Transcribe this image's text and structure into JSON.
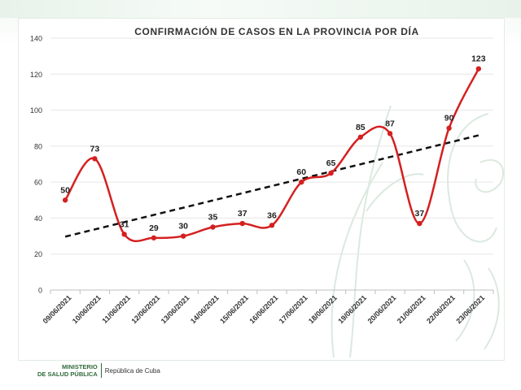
{
  "chart_data": {
    "type": "line",
    "title": "CONFIRMACIÓN  DE CASOS EN LA PROVINCIA POR DÍA",
    "xlabel": "",
    "ylabel": "",
    "ylim": [
      0,
      140
    ],
    "yticks": [
      0,
      20,
      40,
      60,
      80,
      100,
      120,
      140
    ],
    "grid": true,
    "categories": [
      "09/06/2021",
      "10/06/2021",
      "11/06/2021",
      "12/06/2021",
      "13/06/2021",
      "14/06/2021",
      "15/06/2021",
      "16/06/2021",
      "17/06/2021",
      "18/06/2021",
      "19/06/2021",
      "20/06/2021",
      "21/06/2021",
      "22/06/2021",
      "23/06/2021"
    ],
    "series": [
      {
        "name": "",
        "color": "#d42020",
        "values": [
          50,
          73,
          31,
          29,
          30,
          35,
          37,
          36,
          60,
          65,
          85,
          87,
          37,
          90,
          123
        ],
        "labels": [
          "50",
          "73",
          "31",
          "29",
          "30",
          "35",
          "37",
          "36",
          "60",
          "65",
          "85",
          "87",
          "37",
          "90",
          "123"
        ]
      }
    ],
    "trendline": {
      "style": "dashed",
      "color": "#111111",
      "start": 29.7,
      "end": 86.0
    }
  },
  "footer": {
    "ministry_line1": "MINISTERIO",
    "ministry_line2": "DE SALUD PÚBLICA",
    "republica": "República de Cuba"
  }
}
